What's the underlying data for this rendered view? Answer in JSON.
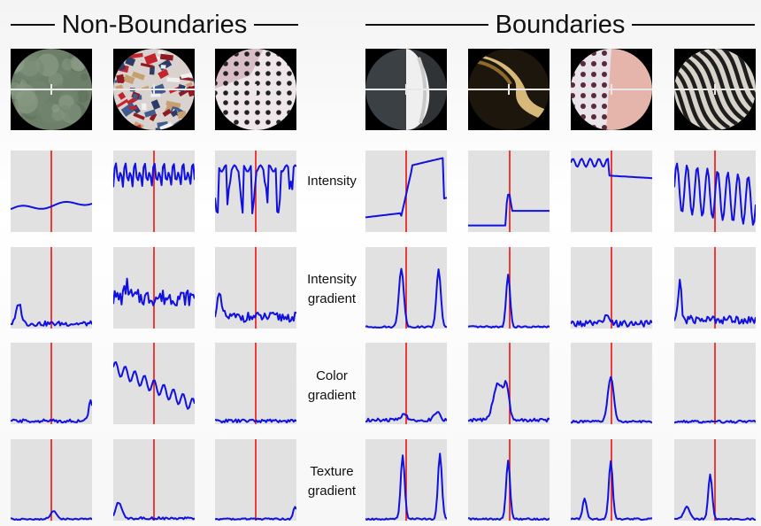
{
  "headers": {
    "non_boundaries": "Non-Boundaries",
    "boundaries": "Boundaries"
  },
  "row_labels": [
    [
      "Intensity"
    ],
    [
      "Intensity",
      "gradient"
    ],
    [
      "Color",
      "gradient"
    ],
    [
      "Texture",
      "gradient"
    ]
  ],
  "columns": [
    {
      "group": "non-boundary",
      "patch": "mossy-green"
    },
    {
      "group": "non-boundary",
      "patch": "red-patterned"
    },
    {
      "group": "non-boundary",
      "patch": "polka-dots"
    },
    {
      "group": "boundary",
      "patch": "black-white-edge"
    },
    {
      "group": "boundary",
      "patch": "dark-golden-curve"
    },
    {
      "group": "boundary",
      "patch": "polka-pink-edge"
    },
    {
      "group": "boundary",
      "patch": "zebra-stripes"
    }
  ],
  "colors": {
    "signal": "#1010e0",
    "center_line": "#ee1111",
    "plot_bg": "#e1e1e1",
    "probe_line": "#e8e8e8"
  }
}
